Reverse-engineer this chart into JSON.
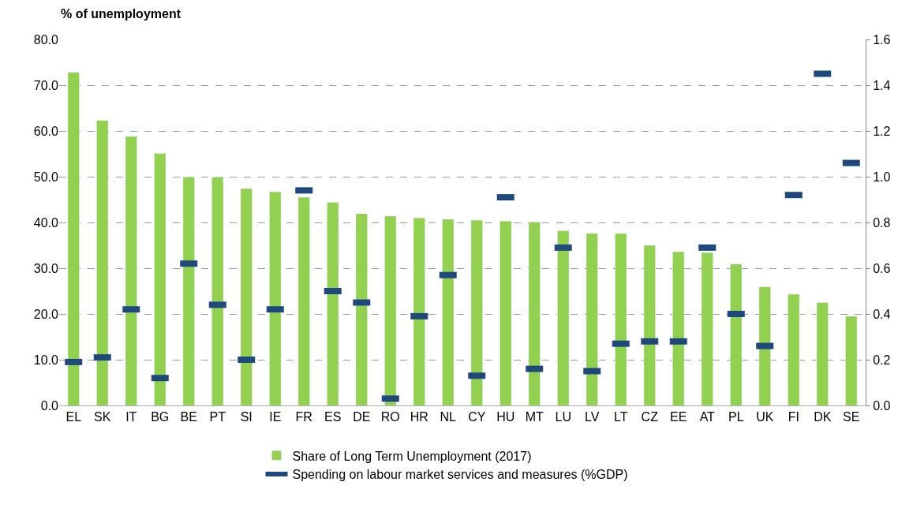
{
  "chart_data": {
    "type": "bar",
    "ylabel": "% of unemployment",
    "categories": [
      "EL",
      "SK",
      "IT",
      "BG",
      "BE",
      "PT",
      "SI",
      "IE",
      "FR",
      "ES",
      "DE",
      "RO",
      "HR",
      "NL",
      "CY",
      "HU",
      "MT",
      "LU",
      "LV",
      "LT",
      "CZ",
      "EE",
      "AT",
      "PL",
      "UK",
      "FI",
      "DK",
      "SE"
    ],
    "series": [
      {
        "name": "Share of Long Term Unemployment (2017)",
        "type": "bar",
        "color": "#92d050",
        "values": [
          72.8,
          62.3,
          58.8,
          55.1,
          49.9,
          49.9,
          47.4,
          46.7,
          45.5,
          44.4,
          41.9,
          41.4,
          41.0,
          40.7,
          40.5,
          40.3,
          40.1,
          38.2,
          37.6,
          37.6,
          35.0,
          33.6,
          33.4,
          30.9,
          25.9,
          24.3,
          22.5,
          19.5
        ]
      },
      {
        "name": "Spending on labour market services and measures (%GDP)",
        "type": "scatter",
        "axis": "y2",
        "color": "#1f497d",
        "values": [
          0.19,
          0.21,
          0.42,
          0.12,
          0.62,
          0.44,
          0.2,
          0.42,
          0.94,
          0.5,
          0.45,
          0.03,
          0.39,
          0.57,
          0.13,
          0.91,
          0.16,
          0.69,
          0.15,
          0.27,
          0.28,
          0.28,
          0.69,
          0.4,
          0.26,
          0.92,
          1.45,
          1.06
        ]
      }
    ],
    "ylim": [
      0,
      80
    ],
    "yticks": [
      {
        "value": 0,
        "label": "0.0"
      },
      {
        "value": 10,
        "label": "10.0"
      },
      {
        "value": 20,
        "label": "20.0"
      },
      {
        "value": 30,
        "label": "30.0"
      },
      {
        "value": 40,
        "label": "40.0"
      },
      {
        "value": 50,
        "label": "50.0"
      },
      {
        "value": 60,
        "label": "60.0"
      },
      {
        "value": 70,
        "label": "70.0"
      },
      {
        "value": 80,
        "label": "80.0"
      }
    ],
    "y2lim": [
      0,
      1.6
    ],
    "y2ticks": [
      {
        "value": 0,
        "label": "0.0"
      },
      {
        "value": 0.2,
        "label": "0.2"
      },
      {
        "value": 0.4,
        "label": "0.4"
      },
      {
        "value": 0.6,
        "label": "0.6"
      },
      {
        "value": 0.8,
        "label": "0.8"
      },
      {
        "value": 1.0,
        "label": "1.0"
      },
      {
        "value": 1.2,
        "label": "1.2"
      },
      {
        "value": 1.4,
        "label": "1.4"
      },
      {
        "value": 1.6,
        "label": "1.6"
      }
    ],
    "grid": "y",
    "legend": "bottom"
  }
}
